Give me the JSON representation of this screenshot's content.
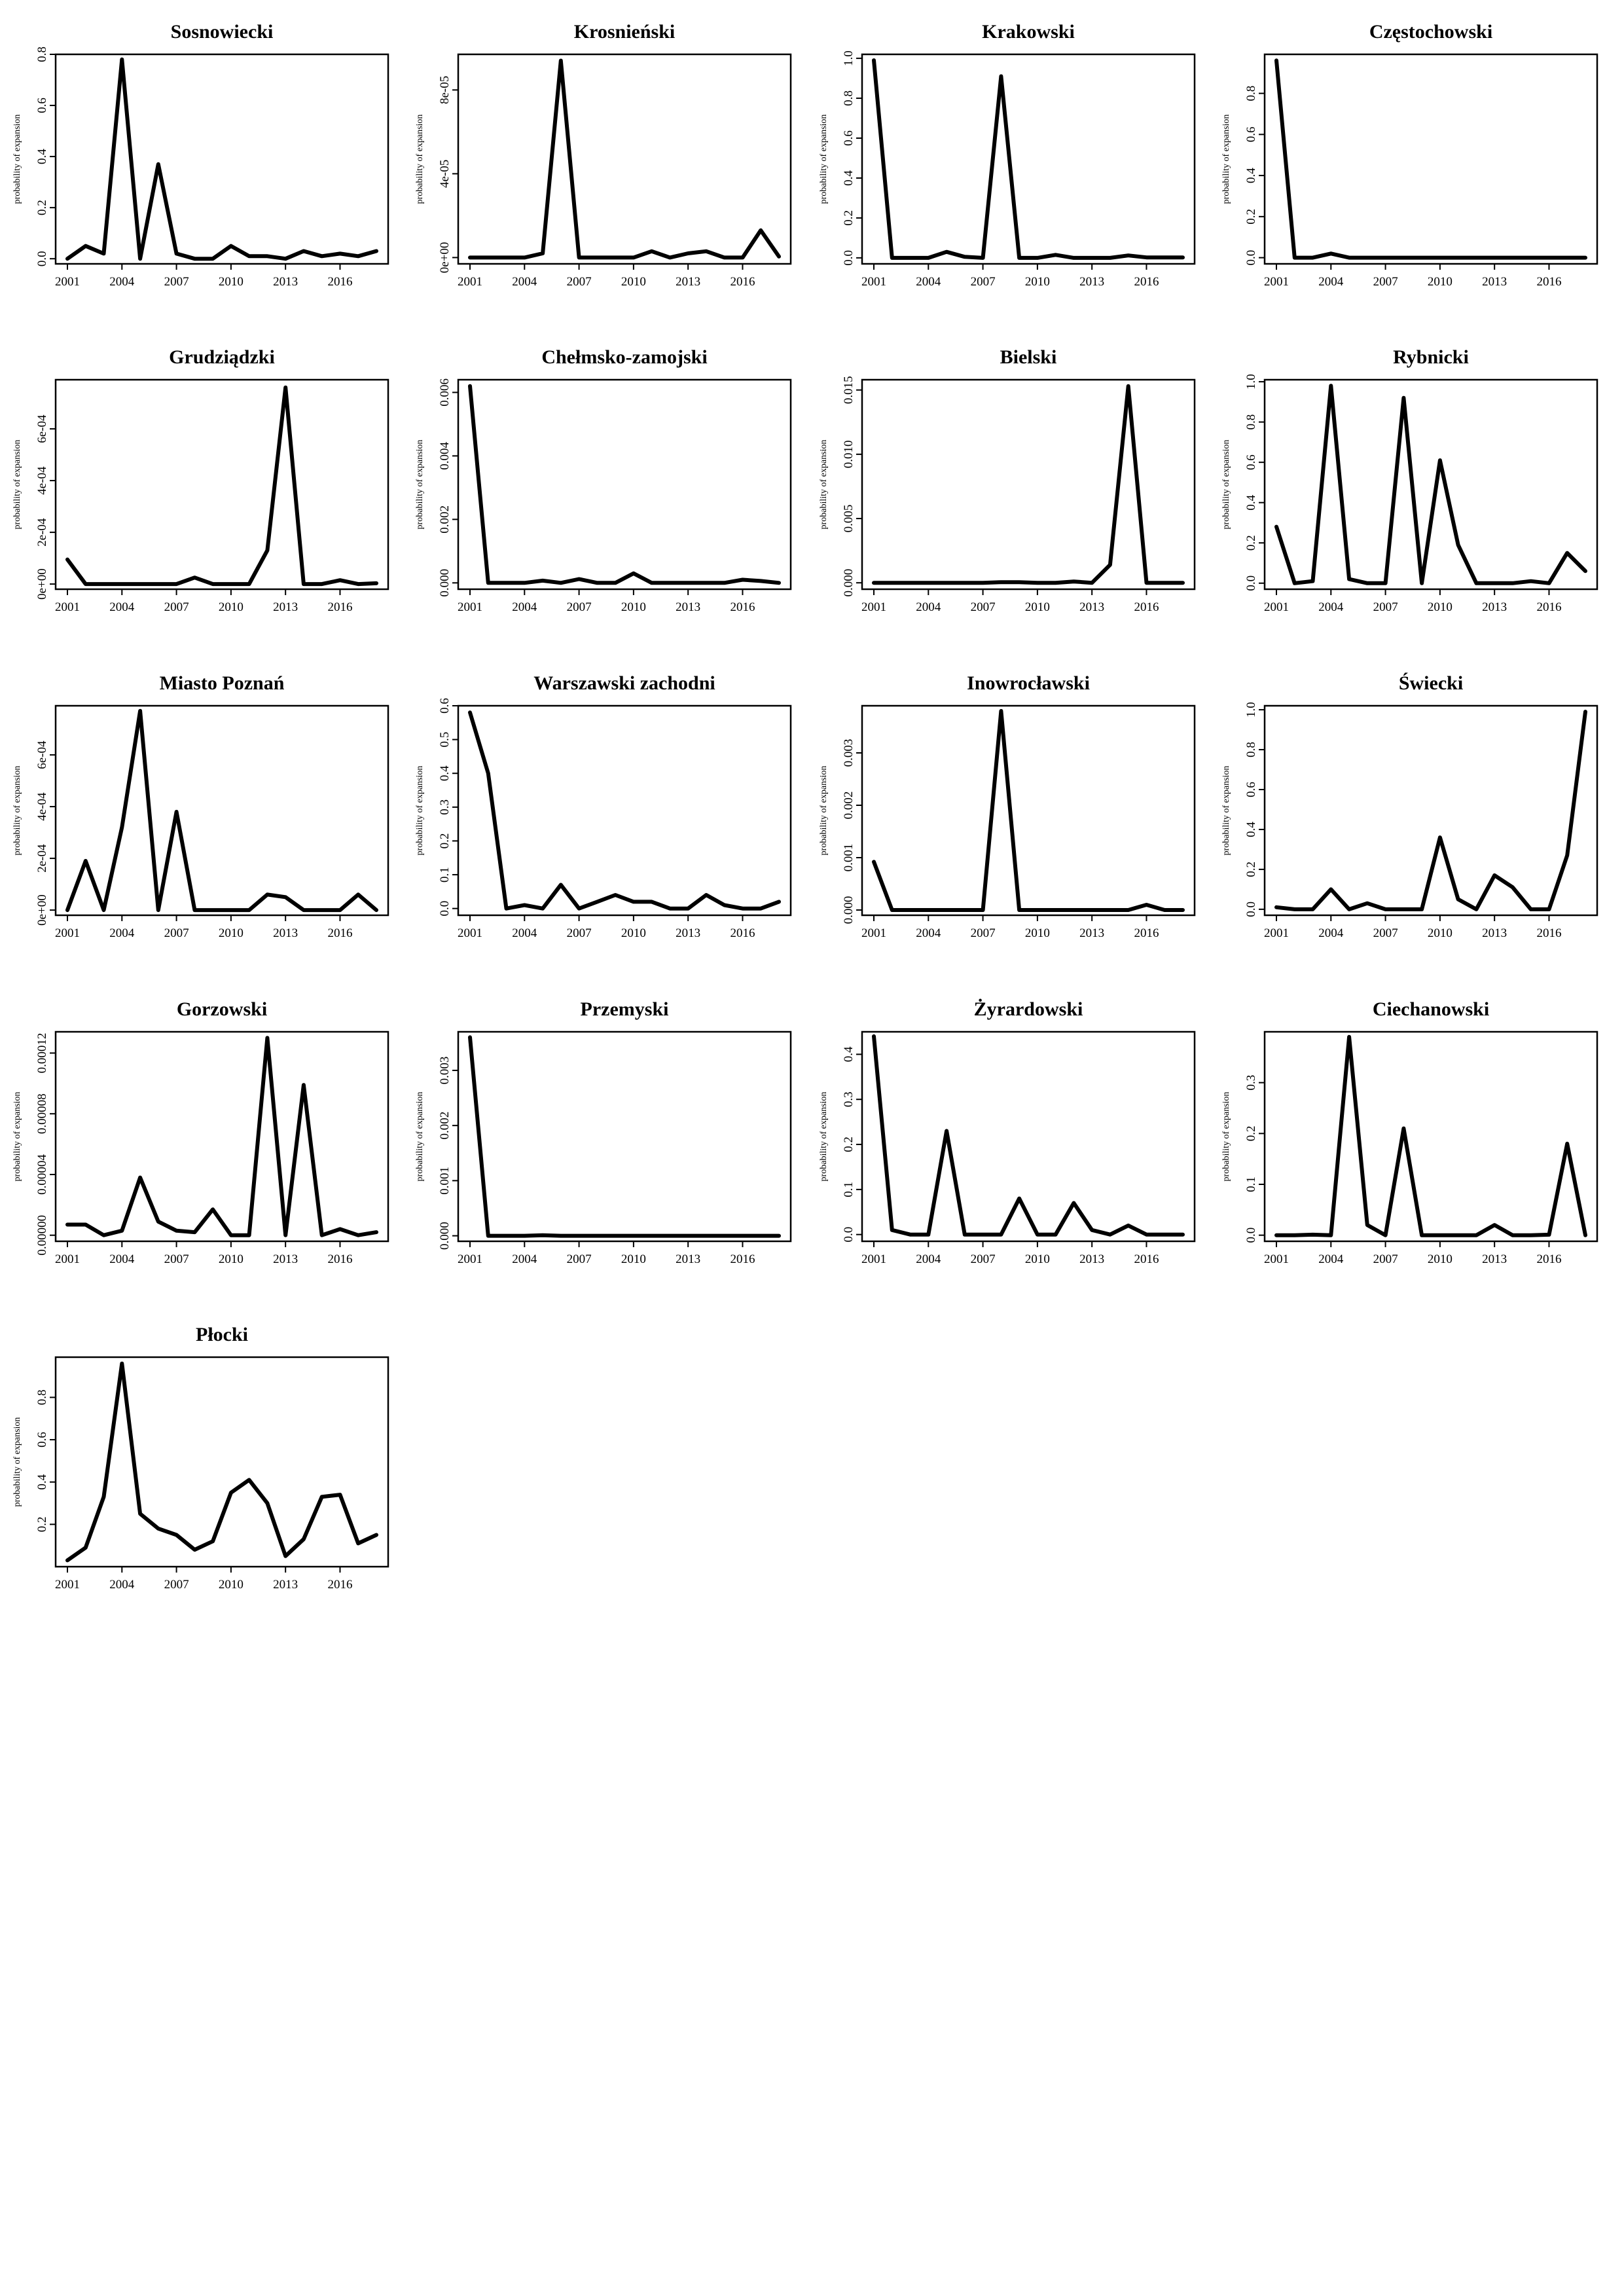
{
  "chart_data": [
    {
      "type": "line",
      "title": "Sosnowiecki",
      "ylabel": "probability of expansion",
      "x": [
        2001,
        2002,
        2003,
        2004,
        2005,
        2006,
        2007,
        2008,
        2009,
        2010,
        2011,
        2012,
        2013,
        2014,
        2015,
        2016,
        2017,
        2018
      ],
      "values": [
        0.0,
        0.05,
        0.02,
        0.78,
        0.0,
        0.37,
        0.02,
        0.0,
        0.0,
        0.05,
        0.01,
        0.01,
        0.0,
        0.03,
        0.01,
        0.02,
        0.01,
        0.03
      ],
      "xticks": [
        "2001",
        "2004",
        "2007",
        "2010",
        "2013",
        "2016"
      ],
      "yticks": [
        0.0,
        0.2,
        0.4,
        0.6,
        0.8
      ],
      "ytick_labels": [
        "0.0",
        "0.2",
        "0.4",
        "0.6",
        "0.8"
      ],
      "ylim": [
        -0.02,
        0.8
      ]
    },
    {
      "type": "line",
      "title": "Krosnieński",
      "ylabel": "probability of expansion",
      "x": [
        2001,
        2002,
        2003,
        2004,
        2005,
        2006,
        2007,
        2008,
        2009,
        2010,
        2011,
        2012,
        2013,
        2014,
        2015,
        2016,
        2017,
        2018
      ],
      "values": [
        0.0,
        0.0,
        0.0,
        0.0,
        2e-06,
        9.4e-05,
        0.0,
        0.0,
        0.0,
        0.0,
        3e-06,
        0.0,
        2e-06,
        3e-06,
        0.0,
        0.0,
        1.3e-05,
        5e-07
      ],
      "xticks": [
        "2001",
        "2004",
        "2007",
        "2010",
        "2013",
        "2016"
      ],
      "yticks": [
        0,
        4e-05,
        8e-05
      ],
      "ytick_labels": [
        "0e+00",
        "4e-05",
        "8e-05"
      ],
      "ylim": [
        -3e-06,
        9.7e-05
      ]
    },
    {
      "type": "line",
      "title": "Krakowski",
      "ylabel": "probability of expansion",
      "x": [
        2001,
        2002,
        2003,
        2004,
        2005,
        2006,
        2007,
        2008,
        2009,
        2010,
        2011,
        2012,
        2013,
        2014,
        2015,
        2016,
        2017,
        2018
      ],
      "values": [
        0.99,
        0.0,
        0.0,
        0.0,
        0.03,
        0.005,
        0.0,
        0.91,
        0.0,
        0.0,
        0.015,
        0.0,
        0.0,
        0.0,
        0.012,
        0.002,
        0.002,
        0.002
      ],
      "xticks": [
        "2001",
        "2004",
        "2007",
        "2010",
        "2013",
        "2016"
      ],
      "yticks": [
        0.0,
        0.2,
        0.4,
        0.6,
        0.8,
        1.0
      ],
      "ytick_labels": [
        "0.0",
        "0.2",
        "0.4",
        "0.6",
        "0.8",
        "1.0"
      ],
      "ylim": [
        -0.03,
        1.02
      ]
    },
    {
      "type": "line",
      "title": "Częstochowski",
      "ylabel": "probability of expansion",
      "x": [
        2001,
        2002,
        2003,
        2004,
        2005,
        2006,
        2007,
        2008,
        2009,
        2010,
        2011,
        2012,
        2013,
        2014,
        2015,
        2016,
        2017,
        2018
      ],
      "values": [
        0.96,
        0.0,
        0.0,
        0.02,
        0.0,
        0.0,
        0.0,
        0.0,
        0.0,
        0.0,
        0.0,
        0.0,
        0.0,
        0.0,
        0.0,
        0.0,
        0.0,
        0.0
      ],
      "xticks": [
        "2001",
        "2004",
        "2007",
        "2010",
        "2013",
        "2016"
      ],
      "yticks": [
        0.0,
        0.2,
        0.4,
        0.6,
        0.8
      ],
      "ytick_labels": [
        "0.0",
        "0.2",
        "0.4",
        "0.6",
        "0.8"
      ],
      "ylim": [
        -0.03,
        0.99
      ]
    },
    {
      "type": "line",
      "title": "Grudziądzki",
      "ylabel": "probability of expansion",
      "x": [
        2001,
        2002,
        2003,
        2004,
        2005,
        2006,
        2007,
        2008,
        2009,
        2010,
        2011,
        2012,
        2013,
        2014,
        2015,
        2016,
        2017,
        2018
      ],
      "values": [
        9.5e-05,
        0.0,
        0.0,
        0.0,
        0.0,
        0.0,
        0.0,
        2.5e-05,
        0.0,
        0.0,
        0.0,
        0.00013,
        0.00076,
        0.0,
        0.0,
        1.5e-05,
        0.0,
        3e-06
      ],
      "xticks": [
        "2001",
        "2004",
        "2007",
        "2010",
        "2013",
        "2016"
      ],
      "yticks": [
        0,
        0.0002,
        0.0004,
        0.0006
      ],
      "ytick_labels": [
        "0e+00",
        "2e-04",
        "4e-04",
        "6e-04"
      ],
      "ylim": [
        -2e-05,
        0.00079
      ]
    },
    {
      "type": "line",
      "title": "Chełmsko-zamojski",
      "ylabel": "probability of expansion",
      "x": [
        2001,
        2002,
        2003,
        2004,
        2005,
        2006,
        2007,
        2008,
        2009,
        2010,
        2011,
        2012,
        2013,
        2014,
        2015,
        2016,
        2017,
        2018
      ],
      "values": [
        0.0062,
        0.0,
        0.0,
        0.0,
        7e-05,
        0.0,
        0.00012,
        0.0,
        0.0,
        0.0003,
        0.0,
        0.0,
        0.0,
        0.0,
        0.0,
        0.0001,
        6e-05,
        0.0
      ],
      "xticks": [
        "2001",
        "2004",
        "2007",
        "2010",
        "2013",
        "2016"
      ],
      "yticks": [
        0,
        0.002,
        0.004,
        0.006
      ],
      "ytick_labels": [
        "0.000",
        "0.002",
        "0.004",
        "0.006"
      ],
      "ylim": [
        -0.0002,
        0.0064
      ]
    },
    {
      "type": "line",
      "title": "Bielski",
      "ylabel": "probability of expansion",
      "x": [
        2001,
        2002,
        2003,
        2004,
        2005,
        2006,
        2007,
        2008,
        2009,
        2010,
        2011,
        2012,
        2013,
        2014,
        2015,
        2016,
        2017,
        2018
      ],
      "values": [
        0.0,
        0.0,
        0.0,
        0.0,
        0.0,
        0.0,
        0.0,
        5e-05,
        5e-05,
        0.0,
        0.0,
        0.0001,
        0.0,
        0.0014,
        0.0153,
        0.0,
        0.0,
        0.0
      ],
      "xticks": [
        "2001",
        "2004",
        "2007",
        "2010",
        "2013",
        "2016"
      ],
      "yticks": [
        0,
        0.005,
        0.01,
        0.015
      ],
      "ytick_labels": [
        "0.000",
        "0.005",
        "0.010",
        "0.015"
      ],
      "ylim": [
        -0.0005,
        0.0158
      ]
    },
    {
      "type": "line",
      "title": "Rybnicki",
      "ylabel": "probability of expansion",
      "x": [
        2001,
        2002,
        2003,
        2004,
        2005,
        2006,
        2007,
        2008,
        2009,
        2010,
        2011,
        2012,
        2013,
        2014,
        2015,
        2016,
        2017,
        2018
      ],
      "values": [
        0.28,
        0.0,
        0.01,
        0.98,
        0.02,
        0.0,
        0.0,
        0.92,
        0.0,
        0.61,
        0.19,
        0.0,
        0.0,
        0.0,
        0.01,
        0.0,
        0.15,
        0.06
      ],
      "xticks": [
        "2001",
        "2004",
        "2007",
        "2010",
        "2013",
        "2016"
      ],
      "yticks": [
        0.0,
        0.2,
        0.4,
        0.6,
        0.8,
        1.0
      ],
      "ytick_labels": [
        "0.0",
        "0.2",
        "0.4",
        "0.6",
        "0.8",
        "1.0"
      ],
      "ylim": [
        -0.03,
        1.01
      ]
    },
    {
      "type": "line",
      "title": "Miasto Poznań",
      "ylabel": "probability of expansion",
      "x": [
        2001,
        2002,
        2003,
        2004,
        2005,
        2006,
        2007,
        2008,
        2009,
        2010,
        2011,
        2012,
        2013,
        2014,
        2015,
        2016,
        2017,
        2018
      ],
      "values": [
        0.0,
        0.00019,
        0.0,
        0.00032,
        0.00077,
        0.0,
        0.00038,
        0.0,
        0.0,
        0.0,
        0.0,
        6e-05,
        5e-05,
        0.0,
        0.0,
        0.0,
        6e-05,
        0.0
      ],
      "xticks": [
        "2001",
        "2004",
        "2007",
        "2010",
        "2013",
        "2016"
      ],
      "yticks": [
        0,
        0.0002,
        0.0004,
        0.0006
      ],
      "ytick_labels": [
        "0e+00",
        "2e-04",
        "4e-04",
        "6e-04"
      ],
      "ylim": [
        -2e-05,
        0.00079
      ]
    },
    {
      "type": "line",
      "title": "Warszawski zachodni",
      "ylabel": "probability of expansion",
      "x": [
        2001,
        2002,
        2003,
        2004,
        2005,
        2006,
        2007,
        2008,
        2009,
        2010,
        2011,
        2012,
        2013,
        2014,
        2015,
        2016,
        2017,
        2018
      ],
      "values": [
        0.58,
        0.4,
        0.0,
        0.01,
        0.0,
        0.07,
        0.0,
        0.02,
        0.04,
        0.02,
        0.02,
        0.0,
        0.0,
        0.04,
        0.01,
        0.0,
        0.0,
        0.02
      ],
      "xticks": [
        "2001",
        "2004",
        "2007",
        "2010",
        "2013",
        "2016"
      ],
      "yticks": [
        0.0,
        0.1,
        0.2,
        0.3,
        0.4,
        0.5,
        0.6
      ],
      "ytick_labels": [
        "0.0",
        "0.1",
        "0.2",
        "0.3",
        "0.4",
        "0.5",
        "0.6"
      ],
      "ylim": [
        -0.02,
        0.6
      ]
    },
    {
      "type": "line",
      "title": "Inowrocławski",
      "ylabel": "probability of expansion",
      "x": [
        2001,
        2002,
        2003,
        2004,
        2005,
        2006,
        2007,
        2008,
        2009,
        2010,
        2011,
        2012,
        2013,
        2014,
        2015,
        2016,
        2017,
        2018
      ],
      "values": [
        0.00092,
        0.0,
        0.0,
        0.0,
        0.0,
        0.0,
        0.0,
        0.0038,
        0.0,
        0.0,
        0.0,
        0.0,
        0.0,
        0.0,
        0.0,
        0.0001,
        0.0,
        0.0
      ],
      "xticks": [
        "2001",
        "2004",
        "2007",
        "2010",
        "2013",
        "2016"
      ],
      "yticks": [
        0,
        0.001,
        0.002,
        0.003
      ],
      "ytick_labels": [
        "0.000",
        "0.001",
        "0.002",
        "0.003"
      ],
      "ylim": [
        -0.0001,
        0.0039
      ]
    },
    {
      "type": "line",
      "title": "Świecki",
      "ylabel": "probability of expansion",
      "x": [
        2001,
        2002,
        2003,
        2004,
        2005,
        2006,
        2007,
        2008,
        2009,
        2010,
        2011,
        2012,
        2013,
        2014,
        2015,
        2016,
        2017,
        2018
      ],
      "values": [
        0.01,
        0.0,
        0.0,
        0.1,
        0.0,
        0.03,
        0.0,
        0.0,
        0.0,
        0.36,
        0.05,
        0.0,
        0.17,
        0.11,
        0.0,
        0.0,
        0.27,
        0.99
      ],
      "xticks": [
        "2001",
        "2004",
        "2007",
        "2010",
        "2013",
        "2016"
      ],
      "yticks": [
        0.0,
        0.2,
        0.4,
        0.6,
        0.8,
        1.0
      ],
      "ytick_labels": [
        "0.0",
        "0.2",
        "0.4",
        "0.6",
        "0.8",
        "1.0"
      ],
      "ylim": [
        -0.03,
        1.02
      ]
    },
    {
      "type": "line",
      "title": "Gorzowski",
      "ylabel": "probability of expansion",
      "x": [
        2001,
        2002,
        2003,
        2004,
        2005,
        2006,
        2007,
        2008,
        2009,
        2010,
        2011,
        2012,
        2013,
        2014,
        2015,
        2016,
        2017,
        2018
      ],
      "values": [
        7e-06,
        7e-06,
        0.0,
        3e-06,
        3.8e-05,
        9e-06,
        3e-06,
        2e-06,
        1.7e-05,
        0.0,
        0.0,
        0.00013,
        0.0,
        9.9e-05,
        0.0,
        4e-06,
        0.0,
        2e-06
      ],
      "xticks": [
        "2001",
        "2004",
        "2007",
        "2010",
        "2013",
        "2016"
      ],
      "yticks": [
        0,
        4e-05,
        8e-05,
        0.00012
      ],
      "ytick_labels": [
        "0.00000",
        "0.00004",
        "0.00008",
        "0.00012"
      ],
      "ylim": [
        -4e-06,
        0.000134
      ]
    },
    {
      "type": "line",
      "title": "Przemyski",
      "ylabel": "probability of expansion",
      "x": [
        2001,
        2002,
        2003,
        2004,
        2005,
        2006,
        2007,
        2008,
        2009,
        2010,
        2011,
        2012,
        2013,
        2014,
        2015,
        2016,
        2017,
        2018
      ],
      "values": [
        0.0036,
        0.0,
        0.0,
        0.0,
        1e-05,
        0.0,
        0.0,
        0.0,
        0.0,
        0.0,
        0.0,
        0.0,
        0.0,
        0.0,
        0.0,
        0.0,
        0.0,
        0.0
      ],
      "xticks": [
        "2001",
        "2004",
        "2007",
        "2010",
        "2013",
        "2016"
      ],
      "yticks": [
        0,
        0.001,
        0.002,
        0.003
      ],
      "ytick_labels": [
        "0.000",
        "0.001",
        "0.002",
        "0.003"
      ],
      "ylim": [
        -0.0001,
        0.0037
      ]
    },
    {
      "type": "line",
      "title": "Żyrardowski",
      "ylabel": "probability of expansion",
      "x": [
        2001,
        2002,
        2003,
        2004,
        2005,
        2006,
        2007,
        2008,
        2009,
        2010,
        2011,
        2012,
        2013,
        2014,
        2015,
        2016,
        2017,
        2018
      ],
      "values": [
        0.44,
        0.01,
        0.0,
        0.0,
        0.23,
        0.0,
        0.0,
        0.0,
        0.08,
        0.0,
        0.0,
        0.07,
        0.01,
        0.0,
        0.02,
        0.0,
        0.0,
        0.0
      ],
      "xticks": [
        "2001",
        "2004",
        "2007",
        "2010",
        "2013",
        "2016"
      ],
      "yticks": [
        0.0,
        0.1,
        0.2,
        0.3,
        0.4
      ],
      "ytick_labels": [
        "0.0",
        "0.1",
        "0.2",
        "0.3",
        "0.4"
      ],
      "ylim": [
        -0.015,
        0.45
      ]
    },
    {
      "type": "line",
      "title": "Ciechanowski",
      "ylabel": "probability of expansion",
      "x": [
        2001,
        2002,
        2003,
        2004,
        2005,
        2006,
        2007,
        2008,
        2009,
        2010,
        2011,
        2012,
        2013,
        2014,
        2015,
        2016,
        2017,
        2018
      ],
      "values": [
        0.0,
        0.0,
        0.001,
        0.0,
        0.39,
        0.02,
        0.0,
        0.21,
        0.0,
        0.0,
        0.0,
        0.0,
        0.02,
        0.0,
        0.0,
        0.001,
        0.18,
        0.0
      ],
      "xticks": [
        "2001",
        "2004",
        "2007",
        "2010",
        "2013",
        "2016"
      ],
      "yticks": [
        0.0,
        0.1,
        0.2,
        0.3
      ],
      "ytick_labels": [
        "0.0",
        "0.1",
        "0.2",
        "0.3"
      ],
      "ylim": [
        -0.012,
        0.4
      ]
    },
    {
      "type": "line",
      "title": "Płocki",
      "ylabel": "probability of expansion",
      "x": [
        2001,
        2002,
        2003,
        2004,
        2005,
        2006,
        2007,
        2008,
        2009,
        2010,
        2011,
        2012,
        2013,
        2014,
        2015,
        2016,
        2017,
        2018
      ],
      "values": [
        0.03,
        0.09,
        0.33,
        0.96,
        0.25,
        0.18,
        0.15,
        0.08,
        0.12,
        0.35,
        0.41,
        0.3,
        0.05,
        0.13,
        0.33,
        0.34,
        0.11,
        0.15
      ],
      "xticks": [
        "2001",
        "2004",
        "2007",
        "2010",
        "2013",
        "2016"
      ],
      "yticks": [
        0.2,
        0.4,
        0.6,
        0.8
      ],
      "ytick_labels": [
        "0.2",
        "0.4",
        "0.6",
        "0.8"
      ],
      "ylim": [
        0.0,
        0.99
      ]
    }
  ]
}
